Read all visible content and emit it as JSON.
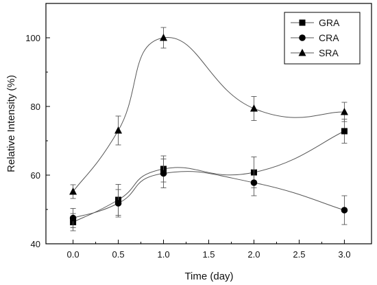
{
  "chart_data": {
    "type": "line",
    "title": "",
    "xlabel": "Time (day)",
    "ylabel": "Relative Intensity (%)",
    "xlim": [
      -0.3,
      3.3
    ],
    "ylim": [
      40,
      110
    ],
    "x_ticks": [
      0.0,
      0.5,
      1.0,
      1.5,
      2.0,
      2.5,
      3.0
    ],
    "x_tick_labels": [
      "0.0",
      "0.5",
      "1.0",
      "1.5",
      "2.0",
      "2.5",
      "3.0"
    ],
    "y_ticks": [
      40,
      60,
      80,
      100
    ],
    "y_tick_labels": [
      "40",
      "60",
      "80",
      "100"
    ],
    "grid": false,
    "legend_position": "top-right",
    "series": [
      {
        "name": "GRA",
        "marker": "square",
        "x": [
          0.0,
          0.5,
          1.0,
          2.0,
          3.0
        ],
        "y": [
          46.3,
          52.8,
          61.8,
          60.8,
          72.8
        ],
        "error": [
          2.5,
          4.5,
          3.8,
          4.5,
          3.5
        ]
      },
      {
        "name": "CRA",
        "marker": "circle",
        "x": [
          0.0,
          0.5,
          1.0,
          2.0,
          3.0
        ],
        "y": [
          47.5,
          51.8,
          60.5,
          57.8,
          49.8
        ],
        "error": [
          2.8,
          4.0,
          4.2,
          3.8,
          4.2
        ]
      },
      {
        "name": "SRA",
        "marker": "triangle",
        "x": [
          0.0,
          0.5,
          1.0,
          2.0,
          3.0
        ],
        "y": [
          55.2,
          73.0,
          100.0,
          79.4,
          78.4
        ],
        "error": [
          2.0,
          4.2,
          3.0,
          3.5,
          2.8
        ]
      }
    ]
  }
}
